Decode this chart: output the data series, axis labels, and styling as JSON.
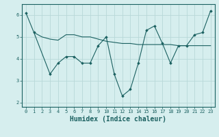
{
  "xlabel": "Humidex (Indice chaleur)",
  "bg_color": "#d6eeee",
  "grid_color": "#b8d8d8",
  "line_color": "#1a6060",
  "line1_x": [
    0,
    1,
    3,
    4,
    5,
    6,
    7,
    8,
    9,
    10,
    11,
    12,
    13,
    14,
    15,
    16,
    17,
    18,
    19,
    20,
    21,
    22,
    23
  ],
  "line1_y": [
    6.1,
    5.2,
    3.3,
    3.8,
    4.1,
    4.1,
    3.8,
    3.8,
    4.6,
    5.0,
    3.3,
    2.3,
    2.6,
    3.8,
    5.3,
    5.5,
    4.7,
    3.8,
    4.6,
    4.6,
    5.1,
    5.2,
    6.2
  ],
  "line2_x": [
    1,
    2,
    3,
    4,
    5,
    6,
    7,
    8,
    9,
    10,
    11,
    12,
    13,
    14,
    15,
    16,
    17,
    18,
    19,
    20,
    21,
    22,
    23
  ],
  "line2_y": [
    5.2,
    5.0,
    4.9,
    4.85,
    5.1,
    5.1,
    5.0,
    5.0,
    4.9,
    4.8,
    4.75,
    4.7,
    4.7,
    4.65,
    4.65,
    4.65,
    4.65,
    4.65,
    4.6,
    4.6,
    4.6,
    4.6,
    4.6
  ],
  "ylim": [
    1.8,
    6.5
  ],
  "xlim": [
    -0.5,
    23.5
  ],
  "yticks": [
    2,
    3,
    4,
    5,
    6
  ],
  "xticks": [
    0,
    1,
    2,
    3,
    4,
    5,
    6,
    7,
    8,
    9,
    10,
    11,
    12,
    13,
    14,
    15,
    16,
    17,
    18,
    19,
    20,
    21,
    22,
    23
  ],
  "tick_fontsize": 5.0,
  "xlabel_fontsize": 7.0
}
